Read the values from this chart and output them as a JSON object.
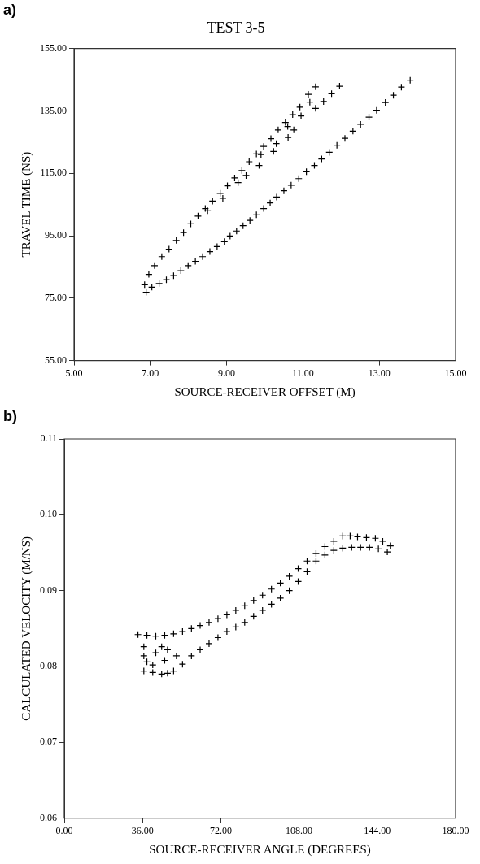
{
  "chart_data": [
    {
      "type": "scatter",
      "title": "TEST 3-5",
      "xlabel": "SOURCE-RECEIVER OFFSET (M)",
      "ylabel": "TRAVEL TIME (NS)",
      "annotations": [
        "a)"
      ],
      "xlim": [
        5,
        15
      ],
      "ylim": [
        55,
        155
      ],
      "xticks": [
        {
          "value": 5,
          "label": "5.00"
        },
        {
          "value": 7,
          "label": "7.00"
        },
        {
          "value": 9,
          "label": "9.00"
        },
        {
          "value": 11,
          "label": "11.00"
        },
        {
          "value": 13,
          "label": "13.00"
        },
        {
          "value": 15,
          "label": "15.00"
        }
      ],
      "yticks": [
        {
          "value": 55,
          "label": "55.00"
        },
        {
          "value": 75,
          "label": "75.00"
        },
        {
          "value": 95,
          "label": "95.00"
        },
        {
          "value": 115,
          "label": "115.00"
        },
        {
          "value": 135,
          "label": "135.00"
        },
        {
          "value": 155,
          "label": "155.00"
        }
      ],
      "grid": false,
      "legend": false,
      "marker": "cross",
      "series": [
        {
          "color": "#000000",
          "x": [
            13.81,
            13.58,
            13.37,
            13.16,
            12.93,
            12.73,
            12.51,
            12.31,
            12.1,
            11.89,
            11.69,
            11.49,
            11.3,
            11.09,
            10.89,
            10.69,
            10.5,
            10.31,
            10.14,
            9.97,
            9.78,
            9.61,
            9.43,
            9.26,
            9.09,
            8.94,
            8.75,
            8.56,
            8.37,
            8.18,
            7.99,
            7.8,
            7.61,
            7.42,
            7.23,
            7.04,
            6.89,
            6.85,
            6.96,
            7.11,
            7.3,
            7.49,
            7.68,
            7.87,
            8.06,
            8.25,
            8.44,
            8.63,
            8.83,
            9.02,
            9.21,
            9.4,
            9.59,
            9.78,
            9.97,
            10.16,
            10.35,
            10.54,
            10.73,
            10.92,
            11.14,
            11.33,
            9.51,
            9.85,
            10.23,
            10.61,
            10.76,
            10.95,
            11.18,
            11.33,
            11.54,
            11.75,
            11.96,
            9.9,
            10.3,
            10.6,
            9.3,
            8.9,
            8.5
          ],
          "values": [
            144.8,
            142.6,
            140.0,
            137.7,
            135.2,
            133.0,
            130.7,
            128.5,
            126.2,
            124.0,
            121.7,
            119.6,
            117.5,
            115.5,
            113.3,
            111.2,
            109.4,
            107.4,
            105.5,
            103.7,
            101.7,
            99.9,
            98.2,
            96.5,
            94.9,
            93.1,
            91.5,
            89.9,
            88.3,
            86.8,
            85.4,
            83.8,
            82.2,
            80.9,
            79.7,
            78.5,
            76.9,
            79.3,
            82.6,
            85.4,
            88.3,
            90.7,
            93.5,
            96.0,
            98.8,
            101.3,
            103.7,
            106.1,
            108.6,
            111.0,
            113.5,
            115.9,
            118.7,
            121.2,
            123.6,
            126.1,
            128.9,
            131.3,
            133.8,
            136.2,
            140.3,
            142.7,
            114.3,
            117.5,
            122.0,
            126.5,
            128.9,
            133.4,
            137.8,
            135.8,
            138.0,
            140.5,
            142.9,
            121.0,
            124.5,
            130.0,
            112.0,
            107.0,
            103.0
          ]
        }
      ]
    },
    {
      "type": "scatter",
      "xlabel": "SOURCE-RECEIVER ANGLE (DEGREES)",
      "ylabel": "CALCULATED VELOCITY (M/NS)",
      "annotations": [
        "b)"
      ],
      "xlim": [
        0,
        180
      ],
      "ylim": [
        0.06,
        0.11
      ],
      "xticks": [
        {
          "value": 0,
          "label": "0.00"
        },
        {
          "value": 36,
          "label": "36.00"
        },
        {
          "value": 72,
          "label": "72.00"
        },
        {
          "value": 108,
          "label": "108.00"
        },
        {
          "value": 144,
          "label": "144.00"
        },
        {
          "value": 180,
          "label": "180.00"
        }
      ],
      "yticks": [
        {
          "value": 0.06,
          "label": "0.06"
        },
        {
          "value": 0.07,
          "label": "0.07"
        },
        {
          "value": 0.08,
          "label": "0.08"
        },
        {
          "value": 0.09,
          "label": "0.09"
        },
        {
          "value": 0.1,
          "label": "0.10"
        },
        {
          "value": 0.11,
          "label": "0.11"
        }
      ],
      "grid": false,
      "legend": false,
      "marker": "cross",
      "series": [
        {
          "color": "#000000",
          "x": [
            33.9,
            38.0,
            42.1,
            46.2,
            50.3,
            54.4,
            58.5,
            62.5,
            66.6,
            70.7,
            74.8,
            78.9,
            83.0,
            87.1,
            91.2,
            95.3,
            99.4,
            103.5,
            107.6,
            111.7,
            115.8,
            119.9,
            124.0,
            128.1,
            131.5,
            134.9,
            139.0,
            143.1,
            146.5,
            150.0,
            36.6,
            40.7,
            44.8,
            47.5,
            50.3,
            54.4,
            58.5,
            62.5,
            66.6,
            70.7,
            74.8,
            78.9,
            83.0,
            87.1,
            91.2,
            95.3,
            99.4,
            103.5,
            107.6,
            111.7,
            115.8,
            119.9,
            124.0,
            128.1,
            132.2,
            136.3,
            140.4,
            144.5,
            148.6,
            36.6,
            36.6,
            38.0,
            42.1,
            44.8,
            47.5,
            51.6,
            40.7,
            46.2
          ],
          "values": [
            0.0842,
            0.0841,
            0.084,
            0.0841,
            0.0843,
            0.0846,
            0.085,
            0.0854,
            0.0858,
            0.0863,
            0.0868,
            0.0874,
            0.088,
            0.0887,
            0.0894,
            0.0902,
            0.091,
            0.0919,
            0.0929,
            0.0939,
            0.0949,
            0.0958,
            0.0965,
            0.0972,
            0.0972,
            0.0971,
            0.097,
            0.0969,
            0.0965,
            0.0959,
            0.0794,
            0.0792,
            0.079,
            0.0791,
            0.0794,
            0.0803,
            0.0814,
            0.0822,
            0.083,
            0.0838,
            0.0846,
            0.0852,
            0.0858,
            0.0866,
            0.0874,
            0.0882,
            0.089,
            0.09,
            0.0912,
            0.0925,
            0.0939,
            0.0947,
            0.0953,
            0.0956,
            0.0957,
            0.0957,
            0.0957,
            0.0955,
            0.0951,
            0.0826,
            0.0814,
            0.0806,
            0.0818,
            0.0826,
            0.0822,
            0.0814,
            0.0802,
            0.0808
          ]
        }
      ]
    }
  ]
}
